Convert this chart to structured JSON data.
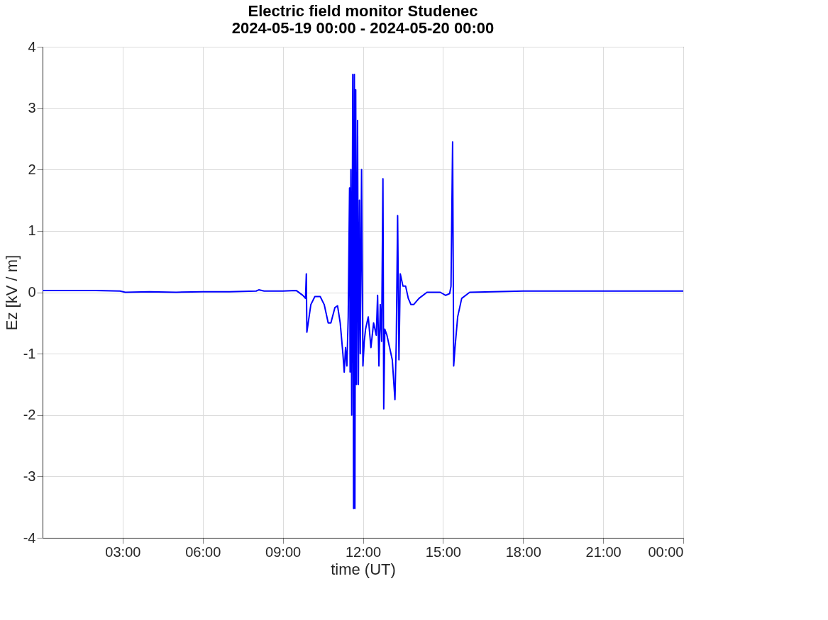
{
  "chart_data": {
    "type": "line",
    "title": [
      "Electric field monitor Studenec",
      "2024-05-19 00:00 - 2024-05-20 00:00"
    ],
    "xlabel": "time (UT)",
    "ylabel": "Ez [kV / m]",
    "xlim": [
      0,
      24
    ],
    "xticks": [
      {
        "value": 3,
        "label": "03:00"
      },
      {
        "value": 6,
        "label": "06:00"
      },
      {
        "value": 9,
        "label": "09:00"
      },
      {
        "value": 12,
        "label": "12:00"
      },
      {
        "value": 15,
        "label": "15:00"
      },
      {
        "value": 18,
        "label": "18:00"
      },
      {
        "value": 21,
        "label": "21:00"
      },
      {
        "value": 24,
        "label": "00:00"
      }
    ],
    "ylim": [
      -4,
      4
    ],
    "yticks": [
      -4,
      -3,
      -2,
      -1,
      0,
      1,
      2,
      3,
      4
    ],
    "grid": true,
    "line_style": "solid",
    "series": [
      {
        "color": "#0000ff",
        "x": [
          0,
          1,
          2,
          2.9,
          3.1,
          4,
          5,
          6,
          7,
          8,
          8.1,
          8.3,
          9,
          9.5,
          9.75,
          9.85,
          9.88,
          9.9,
          9.95,
          10.05,
          10.2,
          10.4,
          10.55,
          10.7,
          10.8,
          10.95,
          11.05,
          11.15,
          11.25,
          11.3,
          11.35,
          11.4,
          11.45,
          11.5,
          11.52,
          11.55,
          11.58,
          11.62,
          11.65,
          11.68,
          11.7,
          11.73,
          11.76,
          11.8,
          11.83,
          11.87,
          11.9,
          11.95,
          12.0,
          12.05,
          12.1,
          12.2,
          12.3,
          12.4,
          12.5,
          12.55,
          12.6,
          12.65,
          12.7,
          12.75,
          12.78,
          12.82,
          12.9,
          13.0,
          13.1,
          13.2,
          13.25,
          13.3,
          13.35,
          13.4,
          13.5,
          13.6,
          13.7,
          13.8,
          13.9,
          14.1,
          14.4,
          14.9,
          15.1,
          15.25,
          15.3,
          15.36,
          15.4,
          15.45,
          15.55,
          15.7,
          16,
          18,
          21,
          24
        ],
        "values": [
          0.03,
          0.03,
          0.03,
          0.02,
          0.0,
          0.01,
          0.0,
          0.01,
          0.01,
          0.02,
          0.04,
          0.02,
          0.02,
          0.03,
          -0.05,
          -0.1,
          0.3,
          -0.65,
          -0.5,
          -0.2,
          -0.07,
          -0.07,
          -0.2,
          -0.5,
          -0.5,
          -0.25,
          -0.22,
          -0.5,
          -1.0,
          -1.3,
          -0.9,
          -1.2,
          -0.4,
          1.7,
          -1.3,
          2.0,
          -2.0,
          3.55,
          -3.52,
          3.55,
          -3.52,
          3.3,
          -1.5,
          2.8,
          -1.5,
          1.5,
          -1.0,
          2.0,
          -1.2,
          -0.8,
          -0.6,
          -0.4,
          -0.9,
          -0.5,
          -0.7,
          -0.05,
          -1.2,
          -0.2,
          -0.8,
          1.85,
          -1.9,
          -0.6,
          -0.7,
          -0.9,
          -1.1,
          -1.75,
          -0.8,
          1.25,
          -1.1,
          0.3,
          0.1,
          0.1,
          -0.1,
          -0.2,
          -0.2,
          -0.1,
          0.0,
          0.0,
          -0.05,
          -0.02,
          0.1,
          2.45,
          -1.2,
          -0.9,
          -0.4,
          -0.1,
          0.0,
          0.02,
          0.02,
          0.02
        ]
      }
    ]
  }
}
